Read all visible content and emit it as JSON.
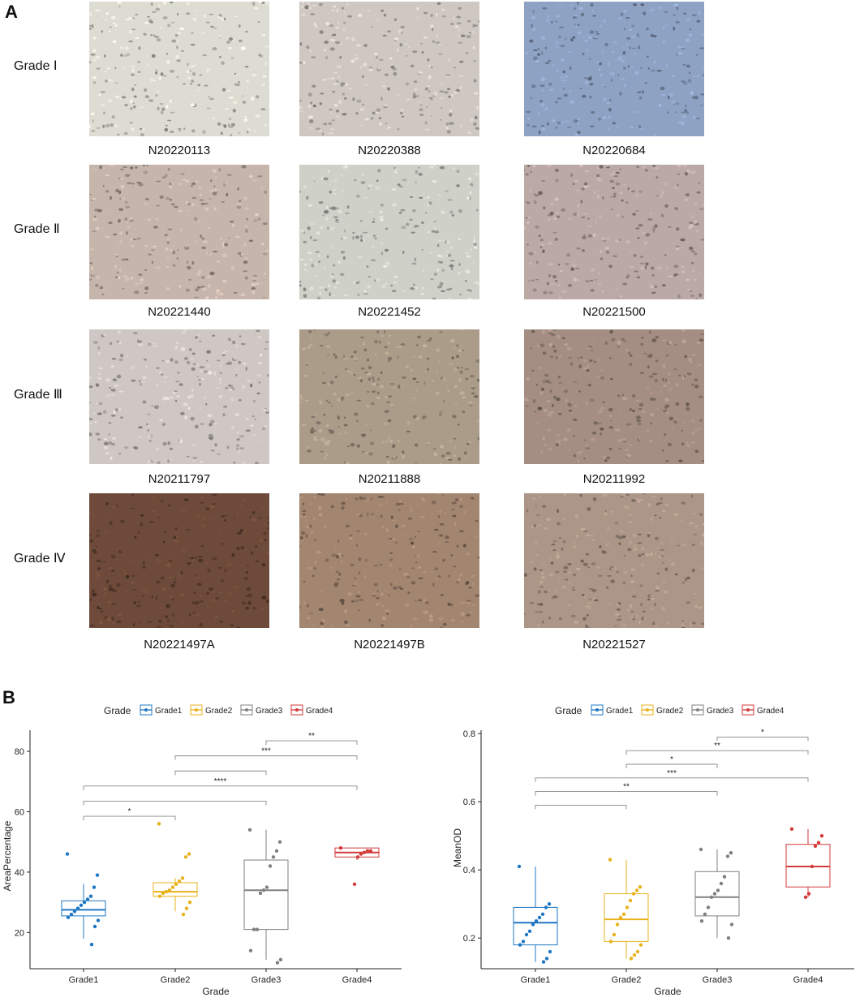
{
  "panel_a": {
    "label": "A",
    "rows": [
      {
        "grade": "Grade Ⅰ",
        "samples": [
          "N20220113",
          "N20220388",
          "N20220684"
        ]
      },
      {
        "grade": "Grade Ⅱ",
        "samples": [
          "N20221440",
          "N20221452",
          "N20221500"
        ]
      },
      {
        "grade": "Grade Ⅲ",
        "samples": [
          "N20211797",
          "N20211888",
          "N20211992"
        ]
      },
      {
        "grade": "Grade Ⅳ",
        "samples": [
          "N20221497A",
          "N20221497B",
          "N20221527"
        ]
      }
    ],
    "tile_colors": [
      [
        "#dcdcd2",
        "#cfc8c2",
        "#8ea2c4"
      ],
      [
        "#c6b5ab",
        "#cfd0c8",
        "#bba9a6"
      ],
      [
        "#cfc7c4",
        "#ab9c8a",
        "#a48e83"
      ],
      [
        "#6d4a39",
        "#a38670",
        "#ac9687"
      ]
    ]
  },
  "panel_b": {
    "label": "B",
    "legend_title": "Grade",
    "legend_items": [
      "Grade1",
      "Grade2",
      "Grade3",
      "Grade4"
    ]
  },
  "colors": {
    "Grade1": "#1f77c4",
    "Grade2": "#e8b21c",
    "Grade3": "#808080",
    "Grade4": "#d43a3a"
  },
  "chart_data": [
    {
      "type": "box",
      "xlabel": "Grade",
      "ylabel": "AreaPercentage",
      "categories": [
        "Grade1",
        "Grade2",
        "Grade3",
        "Grade4"
      ],
      "ylim": [
        8,
        87
      ],
      "yticks": [
        20,
        40,
        60,
        80
      ],
      "boxes": [
        {
          "name": "Grade1",
          "q1": 25.5,
          "median": 27.5,
          "q3": 30.5,
          "whisker_low": 18,
          "whisker_high": 36,
          "points": [
            46,
            39,
            35,
            32,
            31,
            30,
            29,
            28,
            27,
            26,
            25,
            24,
            22,
            16
          ]
        },
        {
          "name": "Grade2",
          "q1": 32,
          "median": 33.5,
          "q3": 36.5,
          "whisker_low": 27,
          "whisker_high": 38,
          "points": [
            56,
            46,
            45,
            38,
            37,
            36,
            35,
            34,
            33.5,
            33,
            32,
            30,
            28,
            26
          ]
        },
        {
          "name": "Grade3",
          "q1": 21,
          "median": 34,
          "q3": 44,
          "whisker_low": 11,
          "whisker_high": 54,
          "points": [
            54,
            50,
            47,
            45,
            42,
            35,
            34,
            33,
            21,
            21,
            14,
            11,
            10
          ]
        },
        {
          "name": "Grade4",
          "q1": 45,
          "median": 46.5,
          "q3": 48,
          "whisker_low": 44,
          "whisker_high": 48,
          "points": [
            48,
            47,
            47,
            46.5,
            46,
            45,
            36
          ]
        }
      ],
      "brackets": [
        {
          "from": "Grade3",
          "to": "Grade4",
          "y": 83.5,
          "label": "**"
        },
        {
          "from": "Grade2",
          "to": "Grade4",
          "y": 78.5,
          "label": "***"
        },
        {
          "from": "Grade2",
          "to": "Grade3",
          "y": 73.5,
          "label": ""
        },
        {
          "from": "Grade1",
          "to": "Grade4",
          "y": 68.5,
          "label": "****"
        },
        {
          "from": "Grade1",
          "to": "Grade3",
          "y": 63.5,
          "label": ""
        },
        {
          "from": "Grade1",
          "to": "Grade2",
          "y": 58.5,
          "label": "*"
        }
      ]
    },
    {
      "type": "box",
      "xlabel": "Grade",
      "ylabel": "MeanOD",
      "categories": [
        "Grade1",
        "Grade2",
        "Grade3",
        "Grade4"
      ],
      "ylim": [
        0.11,
        0.81
      ],
      "yticks": [
        0.2,
        0.4,
        0.6,
        0.8
      ],
      "boxes": [
        {
          "name": "Grade1",
          "q1": 0.18,
          "median": 0.245,
          "q3": 0.29,
          "whisker_low": 0.13,
          "whisker_high": 0.41,
          "points": [
            0.41,
            0.3,
            0.29,
            0.27,
            0.26,
            0.25,
            0.24,
            0.22,
            0.21,
            0.19,
            0.18,
            0.16,
            0.14,
            0.13
          ]
        },
        {
          "name": "Grade2",
          "q1": 0.19,
          "median": 0.255,
          "q3": 0.33,
          "whisker_low": 0.14,
          "whisker_high": 0.43,
          "points": [
            0.43,
            0.35,
            0.34,
            0.33,
            0.31,
            0.29,
            0.27,
            0.26,
            0.24,
            0.21,
            0.19,
            0.18,
            0.16,
            0.15,
            0.14
          ]
        },
        {
          "name": "Grade3",
          "q1": 0.265,
          "median": 0.32,
          "q3": 0.395,
          "whisker_low": 0.2,
          "whisker_high": 0.46,
          "points": [
            0.46,
            0.45,
            0.44,
            0.38,
            0.36,
            0.34,
            0.33,
            0.32,
            0.29,
            0.27,
            0.25,
            0.24,
            0.2
          ]
        },
        {
          "name": "Grade4",
          "q1": 0.35,
          "median": 0.41,
          "q3": 0.475,
          "whisker_low": 0.32,
          "whisker_high": 0.52,
          "points": [
            0.52,
            0.5,
            0.48,
            0.47,
            0.41,
            0.33,
            0.32
          ]
        }
      ],
      "brackets": [
        {
          "from": "Grade3",
          "to": "Grade4",
          "y": 0.79,
          "label": "*"
        },
        {
          "from": "Grade2",
          "to": "Grade4",
          "y": 0.75,
          "label": "**"
        },
        {
          "from": "Grade2",
          "to": "Grade3",
          "y": 0.71,
          "label": "*"
        },
        {
          "from": "Grade1",
          "to": "Grade4",
          "y": 0.67,
          "label": "***"
        },
        {
          "from": "Grade1",
          "to": "Grade3",
          "y": 0.63,
          "label": "**"
        },
        {
          "from": "Grade1",
          "to": "Grade2",
          "y": 0.59,
          "label": ""
        }
      ]
    }
  ]
}
